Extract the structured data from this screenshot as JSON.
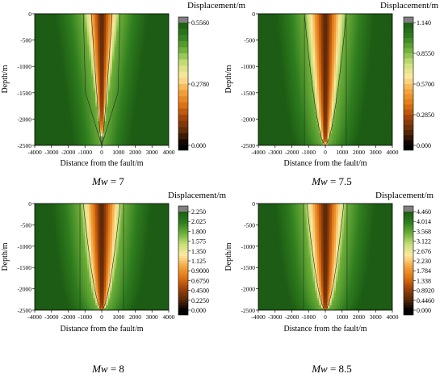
{
  "chart_data": [
    {
      "type": "heatmap",
      "caption": {
        "var": "Mw",
        "rest": " = 7"
      },
      "xlabel": "Distance from the fault/m",
      "ylabel": "Depth/m",
      "xlim": [
        -4000,
        4000
      ],
      "ylim": [
        -2500,
        0
      ],
      "xticks": [
        -4000,
        -3000,
        -2000,
        -1000,
        0,
        1000,
        2000,
        3000,
        4000
      ],
      "yticks": [
        0,
        -500,
        -1000,
        -1500,
        -2000,
        -2500
      ],
      "colorbar": {
        "title": "Displacement/m",
        "max": 0.556,
        "ticks": [
          "0.5560",
          "0.2780",
          "0.000"
        ],
        "tick_values": [
          0.556,
          0.278,
          0.0
        ],
        "levels": 20
      },
      "boundary_half_width_at_surface_m": 1100,
      "inner_contour_half_width_at_surface_m": 620,
      "wedge_power": 1.0,
      "vertical_lines": false
    },
    {
      "type": "heatmap",
      "caption": {
        "var": "Mw",
        "rest": " = 7.5"
      },
      "xlabel": "Distance from the fault/m",
      "ylabel": "Depth/m",
      "xlim": [
        -4000,
        4000
      ],
      "ylim": [
        -2500,
        0
      ],
      "xticks": [
        -4000,
        -3000,
        -2000,
        -1000,
        0,
        1000,
        2000,
        3000,
        4000
      ],
      "yticks": [
        0,
        -500,
        -1000,
        -1500,
        -2000,
        -2500
      ],
      "colorbar": {
        "title": "Displacement/m",
        "max": 1.14,
        "ticks": [
          "1.140",
          "0.8550",
          "0.5700",
          "0.2850",
          "0.000"
        ],
        "tick_values": [
          1.14,
          0.855,
          0.57,
          0.285,
          0.0
        ],
        "levels": 24
      },
      "boundary_half_width_at_surface_m": 1250,
      "inner_contour_half_width_at_surface_m": 1250,
      "wedge_power": 0.55,
      "vertical_lines": true
    },
    {
      "type": "heatmap",
      "caption": {
        "var": "Mw",
        "rest": " = 8"
      },
      "xlabel": "Distance from the fault/m",
      "ylabel": "Depth/m",
      "xlim": [
        -4000,
        4000
      ],
      "ylim": [
        -2500,
        0
      ],
      "xticks": [
        -4000,
        -3000,
        -2000,
        -1000,
        0,
        1000,
        2000,
        3000,
        4000
      ],
      "yticks": [
        0,
        -500,
        -1000,
        -1500,
        -2000,
        -2500
      ],
      "colorbar": {
        "title": "Displacement/m",
        "max": 2.25,
        "ticks": [
          "2.250",
          "2.025",
          "1.800",
          "1.575",
          "1.350",
          "1.125",
          "0.9000",
          "0.6750",
          "0.4500",
          "0.2250",
          "0.000"
        ],
        "tick_values": [
          2.25,
          2.025,
          1.8,
          1.575,
          1.35,
          1.125,
          0.9,
          0.675,
          0.45,
          0.225,
          0.0
        ],
        "levels": 40
      },
      "boundary_half_width_at_surface_m": 1300,
      "inner_contour_half_width_at_surface_m": 1100,
      "wedge_power": 0.45,
      "vertical_lines": true
    },
    {
      "type": "heatmap",
      "caption": {
        "var": "Mw",
        "rest": " = 8.5"
      },
      "xlabel": "Distance from the fault/m",
      "ylabel": "Depth/m",
      "xlim": [
        -4000,
        4000
      ],
      "ylim": [
        -2500,
        0
      ],
      "xticks": [
        -4000,
        -3000,
        -2000,
        -1000,
        0,
        1000,
        2000,
        3000,
        4000
      ],
      "yticks": [
        0,
        -500,
        -1000,
        -1500,
        -2000,
        -2500
      ],
      "colorbar": {
        "title": "Displacement/m",
        "max": 4.46,
        "ticks": [
          "4.460",
          "4.014",
          "3.568",
          "3.122",
          "2.676",
          "2.230",
          "1.784",
          "1.338",
          "0.8920",
          "0.4460",
          "0.000"
        ],
        "tick_values": [
          4.46,
          4.014,
          3.568,
          3.122,
          2.676,
          2.23,
          1.784,
          1.338,
          0.892,
          0.446,
          0.0
        ],
        "levels": 40
      },
      "boundary_half_width_at_surface_m": 1300,
      "inner_contour_half_width_at_surface_m": 1100,
      "wedge_power": 0.45,
      "vertical_lines": true
    }
  ],
  "colors": {
    "stops": [
      "#000000",
      "#5a2a0a",
      "#a0420a",
      "#e07614",
      "#f4a640",
      "#fde8a0",
      "#c8e07a",
      "#6fb03a",
      "#2f7d1e",
      "#1d5c14"
    ],
    "over": "#808080",
    "line": "#2a2a2a",
    "frame": "#000000"
  }
}
